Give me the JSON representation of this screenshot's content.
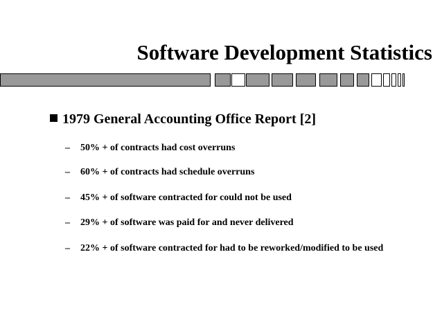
{
  "slide": {
    "title": "Software Development Statistics",
    "main_bullet": "1979 General Accounting Office Report [2]",
    "dash_glyph": "–",
    "sub_bullets": [
      "50% + of contracts had cost overruns",
      "60% + of contracts had schedule overruns",
      "45% + of software contracted for could not be used",
      "29% + of software was paid for and never delivered",
      "22% + of software contracted for had to be reworked/modified to be used"
    ],
    "colors": {
      "text": "#000000",
      "bar_fill": "#999999",
      "bar_border": "#000000",
      "background": "#ffffff"
    }
  }
}
